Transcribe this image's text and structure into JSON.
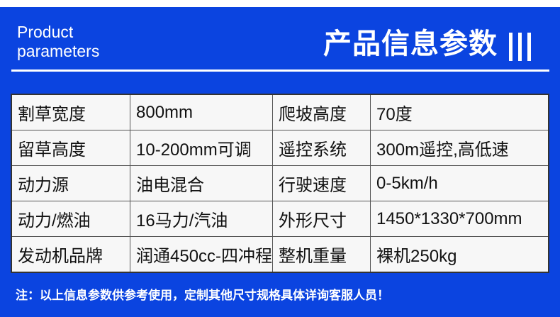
{
  "header": {
    "en_title_line1": "Product",
    "en_title_line2": "parameters",
    "cn_title": "产品信息参数"
  },
  "colors": {
    "background": "#0b44e0",
    "table": "#f7f7f7"
  },
  "table": {
    "rows": [
      [
        "割草宽度",
        "800mm",
        "爬坡高度",
        "70度"
      ],
      [
        "留草高度",
        "10-200mm可调",
        "遥控系统",
        "300m遥控,高低速"
      ],
      [
        "动力源",
        "油电混合",
        "行驶速度",
        "0-5km/h"
      ],
      [
        "动力/燃油",
        "16马力/汽油",
        "外形尺寸",
        "1450*1330*700mm"
      ],
      [
        "发动机品牌",
        "润通450cc-四冲程",
        "整机重量",
        "裸机250kg"
      ]
    ]
  },
  "footer": {
    "note": "注：以上信息参数供参考使用，定制其他尺寸规格具体详询客服人员！"
  }
}
